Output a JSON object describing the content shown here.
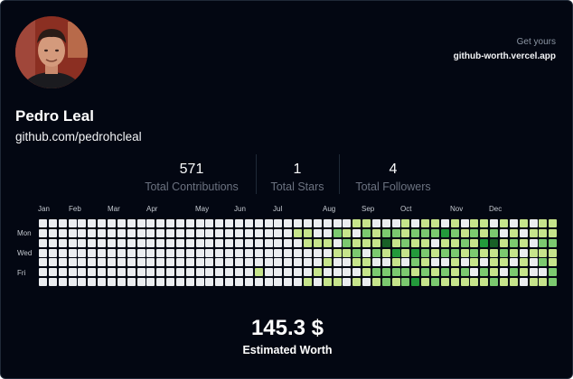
{
  "cta": {
    "line1": "Get yours",
    "line2": "github-worth.vercel.app"
  },
  "user": {
    "name": "Pedro Leal",
    "profile": "github.com/pedrohcleal"
  },
  "stats": [
    {
      "value": "571",
      "label": "Total Contributions"
    },
    {
      "value": "1",
      "label": "Total Stars"
    },
    {
      "value": "4",
      "label": "Total Followers"
    }
  ],
  "calendar": {
    "months": [
      "Jan",
      "Feb",
      "Mar",
      "Apr",
      "May",
      "Jun",
      "Jul",
      "Aug",
      "Sep",
      "Oct",
      "Nov",
      "Dec"
    ],
    "days": [
      "Mon",
      "Wed",
      "Fri"
    ],
    "palette": [
      "#ebedf0",
      "#c6e48b",
      "#7bc96f",
      "#239a3b",
      "#196127"
    ],
    "weeks": [
      [
        0,
        0,
        0,
        0,
        0,
        0,
        0
      ],
      [
        0,
        0,
        0,
        0,
        0,
        0,
        0
      ],
      [
        0,
        0,
        0,
        0,
        0,
        0,
        0
      ],
      [
        0,
        0,
        0,
        0,
        0,
        0,
        0
      ],
      [
        0,
        0,
        0,
        0,
        0,
        0,
        0
      ],
      [
        0,
        0,
        0,
        0,
        0,
        0,
        0
      ],
      [
        0,
        0,
        0,
        0,
        0,
        0,
        0
      ],
      [
        0,
        0,
        0,
        0,
        0,
        0,
        0
      ],
      [
        0,
        0,
        0,
        0,
        0,
        0,
        0
      ],
      [
        0,
        0,
        0,
        0,
        0,
        0,
        0
      ],
      [
        0,
        0,
        0,
        0,
        0,
        0,
        0
      ],
      [
        0,
        0,
        0,
        0,
        0,
        0,
        0
      ],
      [
        0,
        0,
        0,
        0,
        0,
        0,
        0
      ],
      [
        0,
        0,
        0,
        0,
        0,
        0,
        0
      ],
      [
        0,
        0,
        0,
        0,
        0,
        0,
        0
      ],
      [
        0,
        0,
        0,
        0,
        0,
        0,
        0
      ],
      [
        0,
        0,
        0,
        0,
        0,
        0,
        0
      ],
      [
        0,
        0,
        0,
        0,
        0,
        0,
        0
      ],
      [
        0,
        0,
        0,
        0,
        0,
        0,
        0
      ],
      [
        0,
        0,
        0,
        0,
        0,
        0,
        0
      ],
      [
        0,
        0,
        0,
        0,
        0,
        0,
        0
      ],
      [
        0,
        0,
        0,
        0,
        0,
        0,
        0
      ],
      [
        0,
        0,
        0,
        0,
        0,
        1,
        0
      ],
      [
        0,
        0,
        0,
        0,
        0,
        0,
        0
      ],
      [
        0,
        0,
        0,
        0,
        0,
        0,
        0
      ],
      [
        0,
        0,
        0,
        0,
        0,
        0,
        0
      ],
      [
        0,
        1,
        0,
        0,
        0,
        0,
        0
      ],
      [
        0,
        1,
        1,
        0,
        0,
        0,
        1
      ],
      [
        0,
        0,
        1,
        0,
        0,
        1,
        0
      ],
      [
        0,
        0,
        1,
        0,
        1,
        0,
        1
      ],
      [
        0,
        2,
        0,
        1,
        0,
        0,
        1
      ],
      [
        0,
        1,
        2,
        1,
        0,
        0,
        0
      ],
      [
        1,
        0,
        1,
        2,
        1,
        0,
        1
      ],
      [
        1,
        2,
        1,
        0,
        1,
        1,
        0
      ],
      [
        0,
        1,
        1,
        2,
        0,
        2,
        1
      ],
      [
        0,
        2,
        4,
        1,
        0,
        2,
        2
      ],
      [
        0,
        2,
        1,
        3,
        1,
        2,
        1
      ],
      [
        1,
        1,
        2,
        1,
        0,
        2,
        2
      ],
      [
        0,
        2,
        1,
        3,
        2,
        1,
        3
      ],
      [
        1,
        2,
        1,
        2,
        1,
        2,
        1
      ],
      [
        1,
        2,
        0,
        1,
        0,
        1,
        2
      ],
      [
        0,
        3,
        1,
        2,
        0,
        2,
        1
      ],
      [
        1,
        2,
        1,
        2,
        1,
        1,
        1
      ],
      [
        0,
        1,
        2,
        1,
        0,
        2,
        1
      ],
      [
        1,
        2,
        1,
        2,
        1,
        0,
        1
      ],
      [
        1,
        1,
        3,
        1,
        0,
        2,
        1
      ],
      [
        0,
        2,
        4,
        1,
        1,
        1,
        2
      ],
      [
        1,
        0,
        1,
        2,
        1,
        0,
        1
      ],
      [
        0,
        1,
        2,
        1,
        0,
        2,
        1
      ],
      [
        1,
        0,
        1,
        0,
        1,
        1,
        0
      ],
      [
        0,
        1,
        0,
        1,
        0,
        0,
        1
      ],
      [
        1,
        1,
        2,
        1,
        2,
        0,
        1
      ],
      [
        1,
        1,
        2,
        1,
        1,
        2,
        2
      ]
    ]
  },
  "worth": {
    "amount": "145.3 $",
    "caption": "Estimated Worth"
  }
}
